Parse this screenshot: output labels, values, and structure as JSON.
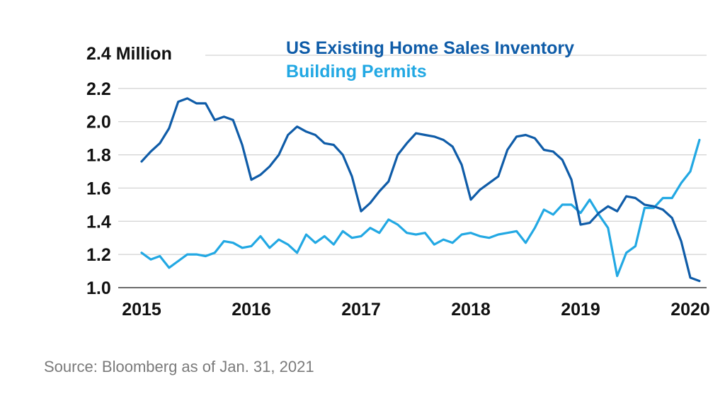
{
  "chart_data": {
    "type": "line",
    "y_unit_label": "2.4 Million",
    "ylim": [
      1.0,
      2.4
    ],
    "y_ticks": [
      "2.2",
      "2.0",
      "1.8",
      "1.6",
      "1.4",
      "1.2",
      "1.0"
    ],
    "x_ticks": [
      "2015",
      "2016",
      "2017",
      "2018",
      "2019",
      "2020"
    ],
    "grid": true,
    "legend_position": "top",
    "series": [
      {
        "name": "US Existing Home Sales Inventory",
        "color": "#0f5ca8",
        "x": [
          "2015-01",
          "2015-02",
          "2015-03",
          "2015-04",
          "2015-05",
          "2015-06",
          "2015-07",
          "2015-08",
          "2015-09",
          "2015-10",
          "2015-11",
          "2015-12",
          "2016-01",
          "2016-02",
          "2016-03",
          "2016-04",
          "2016-05",
          "2016-06",
          "2016-07",
          "2016-08",
          "2016-09",
          "2016-10",
          "2016-11",
          "2016-12",
          "2017-01",
          "2017-02",
          "2017-03",
          "2017-04",
          "2017-05",
          "2017-06",
          "2017-07",
          "2017-08",
          "2017-09",
          "2017-10",
          "2017-11",
          "2017-12",
          "2018-01",
          "2018-02",
          "2018-03",
          "2018-04",
          "2018-05",
          "2018-06",
          "2018-07",
          "2018-08",
          "2018-09",
          "2018-10",
          "2018-11",
          "2018-12",
          "2019-01",
          "2019-02",
          "2019-03",
          "2019-04",
          "2019-05",
          "2019-06",
          "2019-07",
          "2019-08",
          "2019-09",
          "2019-10",
          "2019-11",
          "2019-12",
          "2020-01",
          "2020-02"
        ],
        "values": [
          1.76,
          1.82,
          1.87,
          1.96,
          2.12,
          2.14,
          2.11,
          2.11,
          2.01,
          2.03,
          2.01,
          1.86,
          1.65,
          1.68,
          1.73,
          1.8,
          1.92,
          1.97,
          1.94,
          1.92,
          1.87,
          1.86,
          1.8,
          1.67,
          1.46,
          1.51,
          1.58,
          1.64,
          1.8,
          1.87,
          1.93,
          1.92,
          1.91,
          1.89,
          1.85,
          1.74,
          1.53,
          1.59,
          1.63,
          1.67,
          1.83,
          1.91,
          1.92,
          1.9,
          1.83,
          1.82,
          1.77,
          1.65,
          1.38,
          1.39,
          1.45,
          1.49,
          1.46,
          1.55,
          1.54,
          1.5,
          1.49,
          1.47,
          1.42,
          1.28,
          1.06,
          1.04
        ]
      },
      {
        "name": "Building Permits",
        "color": "#22a8e3",
        "x": [
          "2015-01",
          "2015-02",
          "2015-03",
          "2015-04",
          "2015-05",
          "2015-06",
          "2015-07",
          "2015-08",
          "2015-09",
          "2015-10",
          "2015-11",
          "2015-12",
          "2016-01",
          "2016-02",
          "2016-03",
          "2016-04",
          "2016-05",
          "2016-06",
          "2016-07",
          "2016-08",
          "2016-09",
          "2016-10",
          "2016-11",
          "2016-12",
          "2017-01",
          "2017-02",
          "2017-03",
          "2017-04",
          "2017-05",
          "2017-06",
          "2017-07",
          "2017-08",
          "2017-09",
          "2017-10",
          "2017-11",
          "2017-12",
          "2018-01",
          "2018-02",
          "2018-03",
          "2018-04",
          "2018-05",
          "2018-06",
          "2018-07",
          "2018-08",
          "2018-09",
          "2018-10",
          "2018-11",
          "2018-12",
          "2019-01",
          "2019-02",
          "2019-03",
          "2019-04",
          "2019-05",
          "2019-06",
          "2019-07",
          "2019-08",
          "2019-09",
          "2019-10",
          "2019-11",
          "2019-12",
          "2020-01",
          "2020-02"
        ],
        "values": [
          1.21,
          1.17,
          1.19,
          1.12,
          1.16,
          1.2,
          1.2,
          1.19,
          1.21,
          1.28,
          1.27,
          1.24,
          1.25,
          1.31,
          1.24,
          1.29,
          1.26,
          1.21,
          1.32,
          1.27,
          1.31,
          1.26,
          1.34,
          1.3,
          1.31,
          1.36,
          1.33,
          1.41,
          1.38,
          1.33,
          1.32,
          1.33,
          1.26,
          1.29,
          1.27,
          1.32,
          1.33,
          1.31,
          1.3,
          1.32,
          1.33,
          1.34,
          1.27,
          1.36,
          1.47,
          1.44,
          1.5,
          1.5,
          1.45,
          1.53,
          1.44,
          1.36,
          1.07,
          1.21,
          1.25,
          1.48,
          1.48,
          1.54,
          1.54,
          1.63,
          1.7,
          1.89
        ]
      }
    ]
  },
  "source_note": "Source: Bloomberg as of Jan. 31, 2021"
}
